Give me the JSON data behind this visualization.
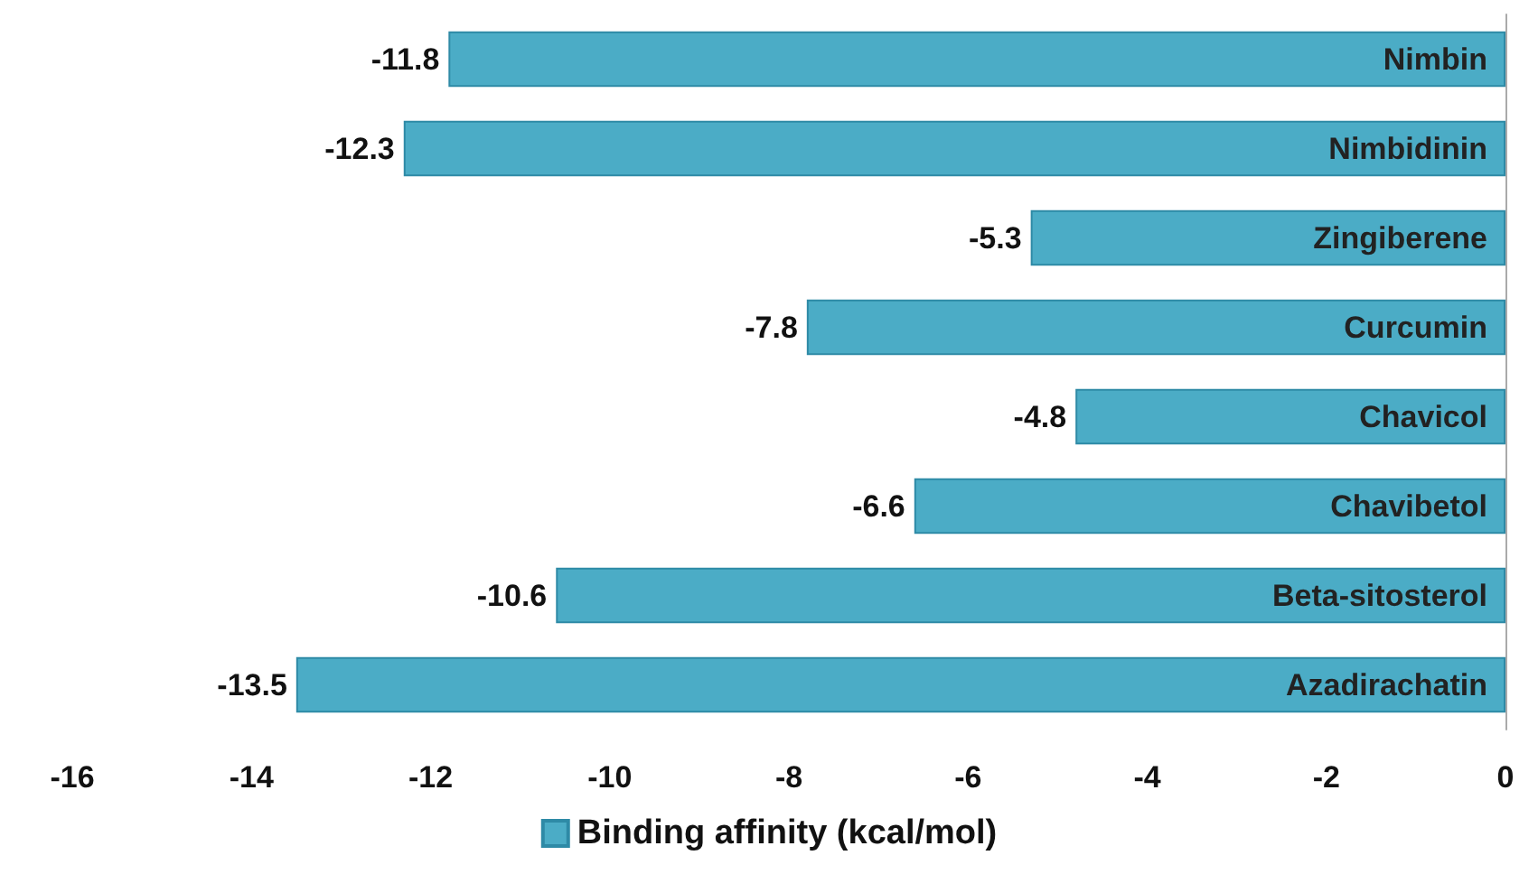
{
  "chart_data": {
    "type": "bar",
    "orientation": "horizontal",
    "categories": [
      "Nimbin",
      "Nimbidinin",
      "Zingiberene",
      "Curcumin",
      "Chavicol",
      "Chavibetol",
      "Beta-sitosterol",
      "Azadirachatin"
    ],
    "series": [
      {
        "name": "Binding affinity (kcal/mol)",
        "color": "#4bacc6",
        "values": [
          -11.8,
          -12.3,
          -5.3,
          -7.8,
          -4.8,
          -6.6,
          -10.6,
          -13.5
        ]
      }
    ],
    "xlim": [
      -16,
      0
    ],
    "xticks": [
      -16,
      -14,
      -12,
      -10,
      -8,
      -6,
      -4,
      -2,
      0
    ],
    "data_labels": true,
    "grid": false,
    "legend": "bottom"
  }
}
